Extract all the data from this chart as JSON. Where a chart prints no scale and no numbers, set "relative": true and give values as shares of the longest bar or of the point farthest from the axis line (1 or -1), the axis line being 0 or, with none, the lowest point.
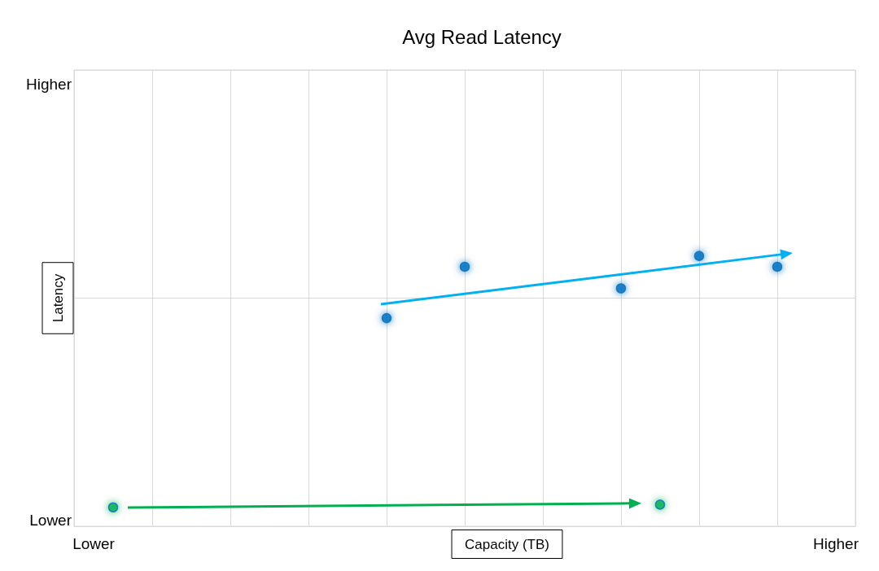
{
  "chart_data": {
    "type": "scatter",
    "title": "Avg Read Latency",
    "xlabel": "Capacity (TB)",
    "ylabel": "Latency",
    "relative": true,
    "grid": true,
    "marker": "circle",
    "annotations": [
      "Higher",
      "Lower"
    ],
    "categories": [
      "Lower",
      null,
      null,
      null,
      null,
      null,
      null,
      null,
      null,
      null,
      null,
      null,
      null,
      null,
      null,
      null,
      null,
      null,
      null,
      null,
      null,
      null,
      null,
      null,
      null,
      null,
      null,
      null,
      null,
      null,
      null,
      null,
      null,
      null,
      null,
      null,
      null,
      null,
      "Higher"
    ],
    "series": [
      {
        "color": "#0070c0",
        "values": [
          null,
          null,
          null,
          null,
          null,
          null,
          null,
          null,
          null,
          null,
          null,
          null,
          null,
          null,
          null,
          0.77,
          null,
          null,
          null,
          0.96,
          null,
          null,
          null,
          null,
          null,
          null,
          null,
          0.88,
          null,
          null,
          null,
          1,
          null,
          null,
          null,
          0.96,
          null,
          null,
          null
        ]
      },
      {
        "color": "#00b050",
        "values": [
          null,
          0.07,
          null,
          null,
          null,
          null,
          null,
          null,
          null,
          null,
          null,
          null,
          null,
          null,
          null,
          null,
          null,
          null,
          null,
          null,
          null,
          null,
          null,
          null,
          null,
          null,
          null,
          null,
          null,
          0.08,
          null,
          null,
          null,
          null,
          null,
          null,
          null,
          null,
          null
        ]
      }
    ]
  }
}
